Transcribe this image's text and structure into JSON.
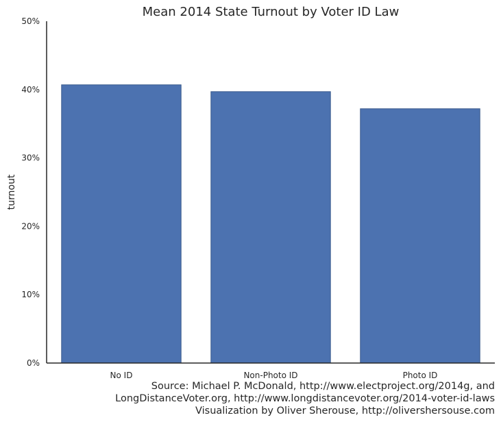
{
  "chart_data": {
    "type": "bar",
    "title": "Mean 2014 State Turnout by Voter ID Law",
    "xlabel": "",
    "ylabel": "turnout",
    "categories": [
      "No ID",
      "Non-Photo ID",
      "Photo ID"
    ],
    "values": [
      40.7,
      39.7,
      37.2
    ],
    "value_unit": "percent",
    "ylim": [
      0,
      50
    ],
    "yticks": [
      "0%",
      "10%",
      "20%",
      "30%",
      "40%",
      "50%"
    ],
    "grid": false,
    "bar_color": "#4c72b0",
    "bar_edge_color": "#3a5a8c",
    "axis_color": "#262626"
  },
  "caption": {
    "line1": "Source: Michael P. McDonald, http://www.electproject.org/2014g, and",
    "line2": "LongDistanceVoter.org, http://www.longdistancevoter.org/2014-voter-id-laws",
    "line3": "Visualization by Oliver Sherouse, http://olivershersouse.com"
  }
}
